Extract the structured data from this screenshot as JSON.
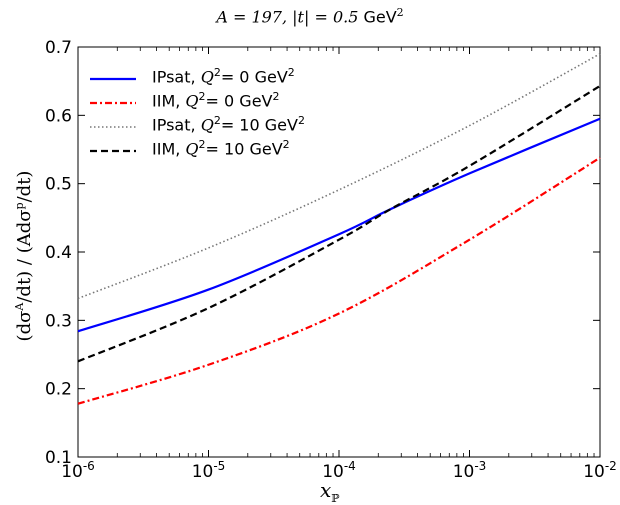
{
  "chart_data": {
    "type": "line",
    "title": {
      "part1": "A = 197, |t| = 0.5",
      "unit": "GeV",
      "exp": "2"
    },
    "xlabel": "x",
    "xlabel_sub": "ℙ",
    "ylabel": {
      "p1": "(dσ",
      "s1": "A",
      "p2": "/dt) / (Adσ",
      "s2": "p",
      "p3": "/dt)"
    },
    "x_scale": "log",
    "xlim": [
      1e-06,
      0.01
    ],
    "ylim": [
      0.1,
      0.7
    ],
    "x_ticks": [
      {
        "value": 1e-06,
        "base": "10",
        "exp": "-6"
      },
      {
        "value": 1e-05,
        "base": "10",
        "exp": "-5"
      },
      {
        "value": 0.0001,
        "base": "10",
        "exp": "-4"
      },
      {
        "value": 0.001,
        "base": "10",
        "exp": "-3"
      },
      {
        "value": 0.01,
        "base": "10",
        "exp": "-2"
      }
    ],
    "y_ticks": [
      "0.1",
      "0.2",
      "0.3",
      "0.4",
      "0.5",
      "0.6",
      "0.7"
    ],
    "grid": false,
    "legend_position": "top-left",
    "series": [
      {
        "name": "IPsat, Q² = 0 GeV²",
        "label_text": "IPsat,",
        "label_q": "Q",
        "label_q_exp": "2",
        "label_eq": "= 0 GeV",
        "label_unit_exp": "2",
        "color": "#0000ff",
        "style": "solid",
        "x": [
          1e-06,
          1e-05,
          0.0001,
          0.00025,
          0.001,
          0.01
        ],
        "y": [
          0.284,
          0.345,
          0.426,
          0.463,
          0.515,
          0.595
        ]
      },
      {
        "name": "IIM, Q² = 0 GeV²",
        "label_text": "IIM,",
        "label_q": "Q",
        "label_q_exp": "2",
        "label_eq": "= 0 GeV",
        "label_unit_exp": "2",
        "color": "#ff0000",
        "style": "dashdot",
        "x": [
          1e-06,
          1e-05,
          0.0001,
          0.001,
          0.01
        ],
        "y": [
          0.178,
          0.235,
          0.31,
          0.418,
          0.538
        ]
      },
      {
        "name": "IPsat, Q² = 10 GeV²",
        "label_text": "IPsat,",
        "label_q": "Q",
        "label_q_exp": "2",
        "label_eq": "= 10 GeV",
        "label_unit_exp": "2",
        "color": "#777777",
        "style": "dotted",
        "x": [
          1e-06,
          1e-05,
          0.0001,
          0.001,
          0.01
        ],
        "y": [
          0.332,
          0.406,
          0.491,
          0.585,
          0.69
        ]
      },
      {
        "name": "IIM, Q² = 10 GeV²",
        "label_text": "IIM,",
        "label_q": "Q",
        "label_q_exp": "2",
        "label_eq": "= 10 GeV",
        "label_unit_exp": "2",
        "color": "#000000",
        "style": "dashed",
        "x": [
          1e-06,
          1e-05,
          0.0001,
          0.00025,
          0.001,
          0.01
        ],
        "y": [
          0.24,
          0.318,
          0.418,
          0.463,
          0.526,
          0.643
        ]
      }
    ]
  }
}
